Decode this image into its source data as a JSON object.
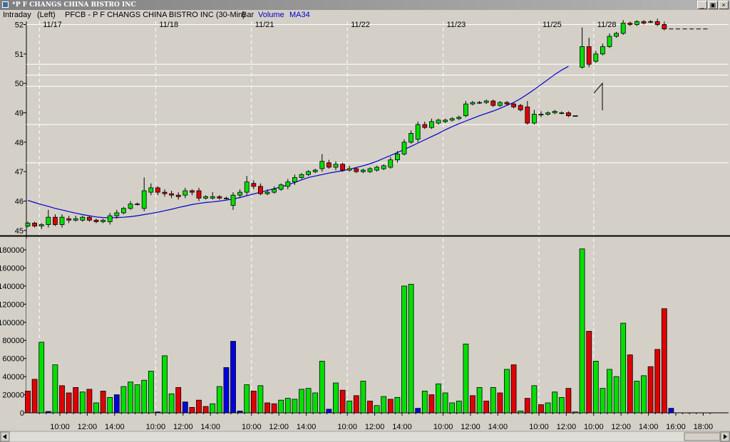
{
  "window": {
    "title": "*P F CHANGS CHINA BISTRO INC",
    "min_label": "_",
    "restore_label": "▣",
    "close_label": "×"
  },
  "infobar": {
    "period": "Intraday",
    "axis": "(Left)",
    "symbol": "PFCB - P F CHANGS CHINA BISTRO INC (30-Min)",
    "style": "Bar",
    "volume_label": "Volume",
    "ma_label": "MA34"
  },
  "colors": {
    "up": "#00e000",
    "down": "#e00000",
    "neutral": "#0000e0",
    "ma": "#0000c8",
    "panel_bg": "#d4d0c8",
    "grid": "#ffffff"
  },
  "date_labels": [
    "11/17",
    "11/18",
    "11/21",
    "11/22",
    "11/23",
    "11/25",
    "11/28"
  ],
  "chart_data": [
    {
      "type": "candlestick",
      "title": "PFCB - P F CHANGS CHINA BISTRO INC (30-Min)",
      "ylim": [
        44.85,
        52.35
      ],
      "y_ticks": [
        45,
        46,
        47,
        48,
        49,
        50,
        51,
        52
      ],
      "x_tick_labels": [
        "10:00",
        "12:00",
        "14:00",
        "10:00",
        "12:00",
        "14:00",
        "10:00",
        "12:00",
        "14:00",
        "10:00",
        "12:00",
        "14:00",
        "10:00",
        "12:00",
        "14:00",
        "10:00",
        "12:00",
        "10:00",
        "12:00",
        "14:00",
        "16:00",
        "18:00"
      ],
      "horizontal_lines": [
        52.0,
        50.65,
        50.28,
        49.9,
        48.6,
        47.3
      ],
      "bars": [
        [
          45.15,
          45.25,
          45.1,
          45.3
        ],
        [
          45.25,
          45.15,
          45.1,
          45.3
        ],
        [
          45.15,
          45.2,
          45.05,
          45.25
        ],
        [
          45.2,
          45.45,
          45.1,
          45.7
        ],
        [
          45.45,
          45.2,
          45.15,
          45.55
        ],
        [
          45.2,
          45.45,
          45.1,
          45.55
        ],
        [
          45.4,
          45.35,
          45.25,
          45.5
        ],
        [
          45.35,
          45.4,
          45.3,
          45.5
        ],
        [
          45.35,
          45.45,
          45.3,
          45.5
        ],
        [
          45.45,
          45.35,
          45.3,
          45.5
        ],
        [
          45.35,
          45.3,
          45.25,
          45.4
        ],
        [
          45.3,
          45.35,
          45.25,
          45.4
        ],
        [
          45.3,
          45.5,
          45.2,
          45.6
        ],
        [
          45.5,
          45.6,
          45.4,
          45.7
        ],
        [
          45.6,
          45.75,
          45.55,
          45.8
        ],
        [
          45.75,
          45.9,
          45.7,
          46.0
        ],
        [
          45.9,
          45.9,
          45.85,
          45.95
        ],
        [
          45.75,
          46.35,
          45.65,
          46.8
        ],
        [
          46.3,
          46.45,
          46.2,
          46.6
        ],
        [
          46.45,
          46.3,
          46.2,
          46.5
        ],
        [
          46.3,
          46.25,
          46.15,
          46.4
        ],
        [
          46.25,
          46.2,
          46.1,
          46.35
        ],
        [
          46.2,
          46.15,
          46.05,
          46.3
        ],
        [
          46.2,
          46.35,
          46.1,
          46.45
        ],
        [
          46.35,
          46.3,
          46.2,
          46.4
        ],
        [
          46.35,
          46.1,
          46.0,
          46.45
        ],
        [
          46.1,
          46.15,
          46.05,
          46.2
        ],
        [
          46.1,
          46.15,
          46.05,
          46.3
        ],
        [
          46.15,
          46.1,
          46.05,
          46.2
        ],
        [
          46.1,
          46.1,
          46.05,
          46.15
        ],
        [
          45.85,
          46.2,
          45.7,
          46.3
        ],
        [
          46.2,
          46.3,
          46.1,
          46.4
        ],
        [
          46.3,
          46.65,
          46.2,
          46.85
        ],
        [
          46.6,
          46.5,
          46.4,
          46.7
        ],
        [
          46.5,
          46.25,
          46.2,
          46.6
        ],
        [
          46.25,
          46.3,
          46.2,
          46.4
        ],
        [
          46.3,
          46.4,
          46.25,
          46.5
        ],
        [
          46.4,
          46.55,
          46.35,
          46.6
        ],
        [
          46.5,
          46.65,
          46.4,
          46.75
        ],
        [
          46.65,
          46.8,
          46.55,
          46.9
        ],
        [
          46.8,
          46.9,
          46.75,
          46.95
        ],
        [
          46.9,
          47.0,
          46.85,
          47.05
        ],
        [
          47.0,
          47.05,
          46.95,
          47.1
        ],
        [
          47.1,
          47.35,
          47.0,
          47.6
        ],
        [
          47.3,
          47.15,
          47.1,
          47.4
        ],
        [
          47.15,
          47.25,
          47.05,
          47.35
        ],
        [
          47.25,
          47.05,
          47.0,
          47.3
        ],
        [
          47.05,
          47.1,
          47.0,
          47.2
        ],
        [
          47.1,
          47.0,
          46.95,
          47.15
        ],
        [
          47.0,
          47.05,
          46.95,
          47.1
        ],
        [
          47.0,
          47.1,
          46.95,
          47.15
        ],
        [
          47.05,
          47.15,
          47.0,
          47.2
        ],
        [
          47.1,
          47.2,
          47.05,
          47.25
        ],
        [
          47.15,
          47.4,
          47.1,
          47.5
        ],
        [
          47.4,
          47.6,
          47.3,
          47.7
        ],
        [
          47.6,
          48.0,
          47.55,
          48.1
        ],
        [
          48.0,
          48.3,
          47.95,
          48.4
        ],
        [
          48.1,
          48.6,
          48.0,
          48.7
        ],
        [
          48.6,
          48.5,
          48.45,
          48.7
        ],
        [
          48.5,
          48.7,
          48.45,
          48.8
        ],
        [
          48.65,
          48.75,
          48.6,
          48.8
        ],
        [
          48.7,
          48.75,
          48.65,
          48.8
        ],
        [
          48.75,
          48.8,
          48.7,
          48.85
        ],
        [
          48.8,
          48.85,
          48.75,
          48.9
        ],
        [
          48.9,
          49.3,
          48.85,
          49.4
        ],
        [
          49.3,
          49.35,
          49.25,
          49.4
        ],
        [
          49.35,
          49.35,
          49.3,
          49.4
        ],
        [
          49.35,
          49.4,
          49.3,
          49.45
        ],
        [
          49.4,
          49.25,
          49.2,
          49.45
        ],
        [
          49.25,
          49.35,
          49.2,
          49.4
        ],
        [
          49.35,
          49.3,
          49.25,
          49.4
        ],
        [
          49.3,
          49.2,
          49.15,
          49.35
        ],
        [
          49.25,
          49.1,
          49.05,
          49.3
        ],
        [
          49.2,
          48.65,
          48.6,
          49.4
        ],
        [
          48.65,
          48.95,
          48.6,
          49.1
        ],
        [
          48.95,
          48.95,
          48.85,
          49.05
        ],
        [
          48.95,
          49.0,
          48.9,
          49.05
        ],
        [
          49.0,
          49.05,
          48.95,
          49.1
        ],
        [
          49.0,
          49.0,
          48.95,
          49.05
        ],
        [
          49.0,
          48.9,
          48.85,
          49.05
        ],
        [
          48.9,
          48.9,
          48.9,
          48.9
        ],
        [
          50.55,
          51.25,
          50.5,
          51.9
        ],
        [
          51.25,
          50.65,
          50.55,
          51.55
        ],
        [
          50.75,
          51.0,
          50.7,
          51.1
        ],
        [
          51.0,
          51.25,
          50.95,
          51.35
        ],
        [
          51.25,
          51.6,
          51.2,
          51.7
        ],
        [
          51.6,
          51.7,
          51.55,
          51.75
        ],
        [
          51.7,
          52.05,
          51.65,
          52.15
        ],
        [
          52.05,
          52.0,
          51.95,
          52.1
        ],
        [
          52.0,
          52.1,
          51.95,
          52.15
        ],
        [
          52.1,
          52.05,
          52.0,
          52.15
        ],
        [
          52.1,
          52.1,
          52.05,
          52.15
        ],
        [
          52.1,
          52.0,
          51.95,
          52.2
        ],
        [
          52.0,
          51.85,
          51.8,
          52.1
        ],
        [
          51.85,
          51.85,
          51.85,
          51.85
        ],
        [
          51.85,
          51.85,
          51.85,
          51.85
        ],
        [
          51.85,
          51.85,
          51.85,
          51.85
        ],
        [
          51.85,
          51.85,
          51.85,
          51.85
        ],
        [
          51.85,
          51.85,
          51.85,
          51.85
        ],
        [
          51.85,
          51.85,
          51.85,
          51.85
        ]
      ],
      "ma34": [
        46.02,
        45.95,
        45.88,
        45.82,
        45.75,
        45.7,
        45.64,
        45.59,
        45.54,
        45.5,
        45.46,
        45.44,
        45.43,
        45.44,
        45.45,
        45.47,
        45.5,
        45.54,
        45.58,
        45.62,
        45.67,
        45.72,
        45.78,
        45.83,
        45.88,
        45.92,
        45.95,
        45.97,
        46.0,
        46.03,
        46.07,
        46.12,
        46.18,
        46.24,
        46.3,
        46.36,
        46.42,
        46.48,
        46.55,
        46.63,
        46.72,
        46.8,
        46.85,
        46.9,
        46.95,
        46.99,
        47.03,
        47.08,
        47.14,
        47.2,
        47.27,
        47.35,
        47.45,
        47.55,
        47.65,
        47.75,
        47.86,
        47.97,
        48.08,
        48.19,
        48.3,
        48.42,
        48.53,
        48.63,
        48.72,
        48.81,
        48.9,
        48.98,
        49.06,
        49.15,
        49.25,
        49.35,
        49.48,
        49.63,
        49.79,
        49.96,
        50.13,
        50.3,
        50.45,
        50.58
      ]
    },
    {
      "type": "bar",
      "title": "Volume",
      "ylim": [
        0,
        190000
      ],
      "y_ticks": [
        0,
        20000,
        40000,
        60000,
        80000,
        100000,
        120000,
        140000,
        160000,
        180000
      ],
      "y_tick_labels": [
        "0",
        "20000",
        "40000",
        "60000",
        "80000",
        "100000",
        "120000",
        "140000",
        "160000",
        "180000"
      ],
      "values": [
        24000,
        37000,
        78000,
        1500,
        53000,
        30000,
        22000,
        28000,
        23000,
        26000,
        11000,
        24000,
        17000,
        20000,
        29000,
        34000,
        31000,
        36000,
        46000,
        1000,
        63000,
        21000,
        28000,
        12000,
        6000,
        14000,
        7000,
        10000,
        29000,
        50000,
        79000,
        2000,
        31000,
        24000,
        30000,
        11000,
        10000,
        14000,
        16000,
        15000,
        26000,
        27000,
        22000,
        57000,
        4000,
        33000,
        25000,
        13000,
        19000,
        35000,
        13000,
        8000,
        18000,
        15000,
        17000,
        140000,
        142000,
        5000,
        24000,
        20000,
        32000,
        22000,
        11000,
        13000,
        76000,
        19000,
        28000,
        13000,
        28000,
        22000,
        48000,
        53000,
        2000,
        16000,
        30000,
        9000,
        11000,
        23000,
        17000,
        27000,
        1000,
        181000,
        90000,
        57000,
        27000,
        48000,
        40000,
        99000,
        64000,
        35000,
        41000,
        51000,
        70000,
        115000,
        5000
      ],
      "colors": [
        "d",
        "d",
        "u",
        "n",
        "u",
        "d",
        "d",
        "d",
        "u",
        "d",
        "u",
        "d",
        "u",
        "n",
        "u",
        "u",
        "u",
        "u",
        "u",
        "n",
        "u",
        "u",
        "d",
        "n",
        "d",
        "d",
        "d",
        "u",
        "u",
        "n",
        "n",
        "n",
        "u",
        "d",
        "u",
        "d",
        "d",
        "u",
        "u",
        "u",
        "u",
        "u",
        "u",
        "u",
        "n",
        "u",
        "d",
        "u",
        "d",
        "u",
        "d",
        "u",
        "u",
        "d",
        "u",
        "u",
        "u",
        "n",
        "u",
        "d",
        "u",
        "u",
        "u",
        "u",
        "u",
        "d",
        "u",
        "d",
        "u",
        "d",
        "u",
        "d",
        "u",
        "d",
        "u",
        "d",
        "u",
        "u",
        "u",
        "d",
        "u",
        "u",
        "d",
        "u",
        "u",
        "u",
        "u",
        "u",
        "d",
        "u",
        "u",
        "d",
        "d",
        "d",
        "n"
      ]
    }
  ]
}
